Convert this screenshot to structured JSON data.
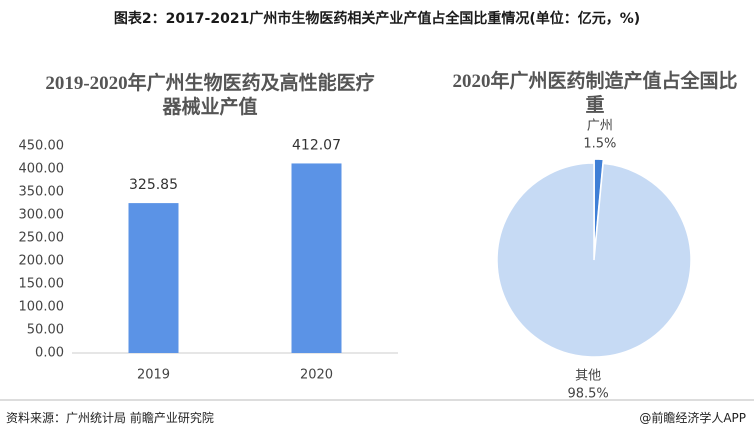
{
  "header": {
    "title": "图表2：2017-2021广州市生物医药相关产业产值占全国比重情况(单位：亿元，%)"
  },
  "chart_data": [
    {
      "type": "bar",
      "title": "2019-2020年广州生物医药及高性能医疗器械业产值",
      "categories": [
        "2019",
        "2020"
      ],
      "values": [
        325.85,
        412.07
      ],
      "color": "#5b93e6",
      "ylim": [
        0,
        450
      ],
      "yticks": [
        {
          "value": 0,
          "label": "0.00"
        },
        {
          "value": 50,
          "label": "50.00"
        },
        {
          "value": 100,
          "label": "100.00"
        },
        {
          "value": 150,
          "label": "150.00"
        },
        {
          "value": 200,
          "label": "200.00"
        },
        {
          "value": 250,
          "label": "250.00"
        },
        {
          "value": 300,
          "label": "300.00"
        },
        {
          "value": 350,
          "label": "350.00"
        },
        {
          "value": 400,
          "label": "400.00"
        },
        {
          "value": 450,
          "label": "450.00"
        }
      ],
      "grid": false
    },
    {
      "type": "pie",
      "title": "2020年广州医药制造产值占全国比重",
      "categories": [
        "广州",
        "其他"
      ],
      "values": [
        1.5,
        98.5
      ],
      "value_labels": [
        "1.5%",
        "98.5%"
      ],
      "colors": [
        "#3f7fd6",
        "#c6daf4"
      ]
    }
  ],
  "footer": {
    "source": "资料来源：广州统计局 前瞻产业研究院",
    "credit": "@前瞻经济学人APP"
  }
}
